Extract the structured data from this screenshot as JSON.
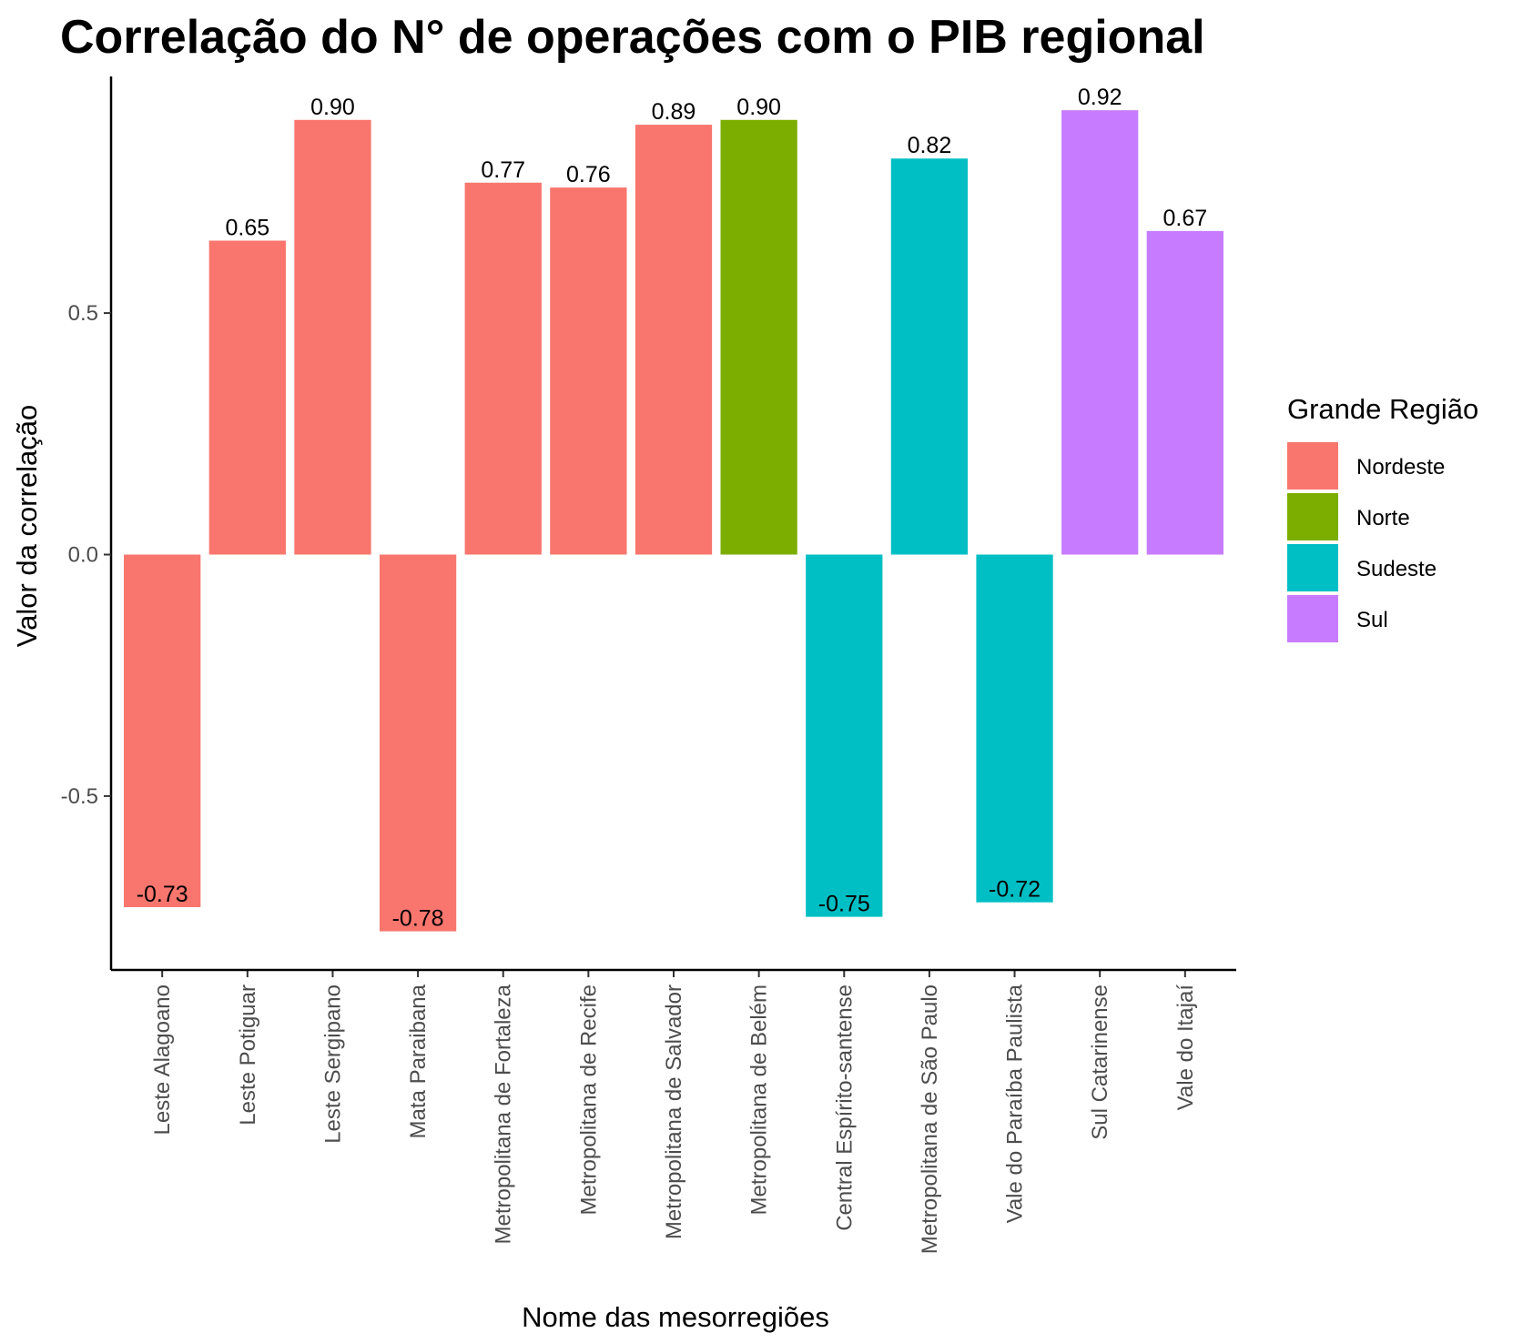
{
  "chart_data": {
    "type": "bar",
    "title": "Correlação do N° de operações com o PIB regional",
    "xlabel": "Nome das mesorregiões",
    "ylabel": "Valor da correlação",
    "categories": [
      "Leste Alagoano",
      "Leste Potiguar",
      "Leste Sergipano",
      "Mata Paraibana",
      "Metropolitana de Fortaleza",
      "Metropolitana de Recife",
      "Metropolitana de Salvador",
      "Metropolitana de Belém",
      "Central Espírito-santense",
      "Metropolitana de São Paulo",
      "Vale do Paraíba Paulista",
      "Sul Catarinense",
      "Vale do Itajaí"
    ],
    "values": [
      -0.73,
      0.65,
      0.9,
      -0.78,
      0.77,
      0.76,
      0.89,
      0.9,
      -0.75,
      0.82,
      -0.72,
      0.92,
      0.67
    ],
    "data_labels": [
      "-0.73",
      "0.65",
      "0.90",
      "-0.78",
      "0.77",
      "0.76",
      "0.89",
      "0.90",
      "-0.75",
      "0.82",
      "-0.72",
      "0.92",
      "0.67"
    ],
    "groups": [
      "Nordeste",
      "Nordeste",
      "Nordeste",
      "Nordeste",
      "Nordeste",
      "Nordeste",
      "Nordeste",
      "Norte",
      "Sudeste",
      "Sudeste",
      "Sudeste",
      "Sul",
      "Sul"
    ],
    "ylim": [
      -0.86,
      0.99
    ],
    "yticks": [
      -0.5,
      0.0,
      0.5
    ],
    "ytick_labels": [
      "-0.5",
      "0.0",
      "0.5"
    ],
    "grid": false,
    "legend": {
      "title": "Grande Região",
      "position": "right",
      "entries": [
        {
          "name": "Nordeste",
          "color": "#F8766D"
        },
        {
          "name": "Norte",
          "color": "#7CAE00"
        },
        {
          "name": "Sudeste",
          "color": "#00BFC4"
        },
        {
          "name": "Sul",
          "color": "#C77CFF"
        }
      ]
    }
  }
}
